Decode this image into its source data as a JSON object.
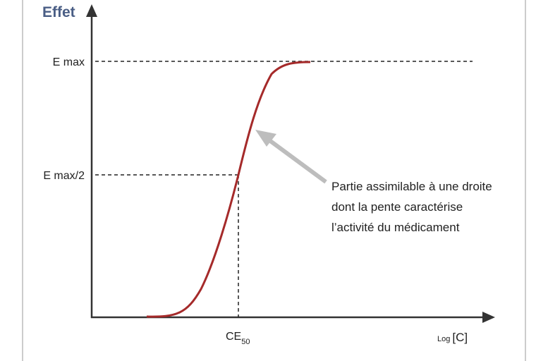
{
  "y_axis_label": "Effet",
  "levels": {
    "max": "E max",
    "half": "E max/2"
  },
  "x_marker": {
    "base": "CE",
    "subscript": "50"
  },
  "x_axis_label": {
    "prefix": "Log",
    "main": "[C]"
  },
  "annotation": [
    "Partie assimilable à une droite",
    "dont la pente caractérise",
    "l’activité du médicament"
  ]
}
